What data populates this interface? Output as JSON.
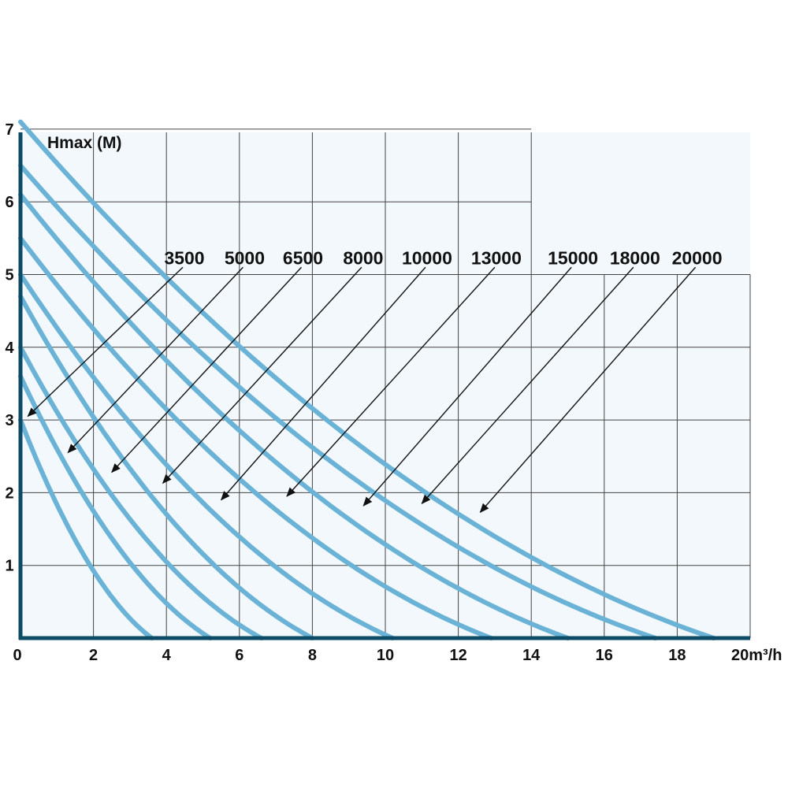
{
  "chart_data": {
    "type": "line",
    "title": "",
    "ylabel": "Hmax (M)",
    "xlabel_prefix": "20",
    "xlabel_unit": "m³/h",
    "xlim": [
      0,
      20
    ],
    "ylim": [
      0,
      7
    ],
    "grid": true,
    "x_ticks": [
      "0",
      "2",
      "4",
      "6",
      "8",
      "10",
      "12",
      "14",
      "16",
      "18"
    ],
    "y_ticks": [
      "1",
      "2",
      "3",
      "4",
      "5",
      "6",
      "7"
    ],
    "colors": {
      "curve": "#6ab3d6",
      "axis": "#0d4a66",
      "plot_bg": "#f2f8fc",
      "grid": "#444444",
      "arrow": "#111111"
    },
    "series": [
      {
        "name": "3500",
        "hmax": 3.0,
        "qmax": 3.6,
        "label_anchor": [
          4.45,
          5.1
        ],
        "arrow_target": [
          0.2,
          3.05
        ]
      },
      {
        "name": "5000",
        "hmax": 3.6,
        "qmax": 5.2,
        "label_anchor": [
          6.1,
          5.1
        ],
        "arrow_target": [
          1.3,
          2.55
        ]
      },
      {
        "name": "6500",
        "hmax": 4.0,
        "qmax": 6.6,
        "label_anchor": [
          7.7,
          5.1
        ],
        "arrow_target": [
          2.5,
          2.28
        ]
      },
      {
        "name": "8000",
        "hmax": 4.7,
        "qmax": 8.0,
        "label_anchor": [
          9.35,
          5.1
        ],
        "arrow_target": [
          3.9,
          2.13
        ]
      },
      {
        "name": "10000",
        "hmax": 5.0,
        "qmax": 10.2,
        "label_anchor": [
          11.1,
          5.1
        ],
        "arrow_target": [
          5.5,
          1.9
        ]
      },
      {
        "name": "13000",
        "hmax": 5.5,
        "qmax": 12.9,
        "label_anchor": [
          13.0,
          5.1
        ],
        "arrow_target": [
          7.3,
          1.95
        ]
      },
      {
        "name": "15000",
        "hmax": 6.1,
        "qmax": 15.0,
        "label_anchor": [
          15.1,
          5.1
        ],
        "arrow_target": [
          9.4,
          1.82
        ]
      },
      {
        "name": "18000",
        "hmax": 6.5,
        "qmax": 17.4,
        "label_anchor": [
          16.8,
          5.1
        ],
        "arrow_target": [
          11.0,
          1.85
        ]
      },
      {
        "name": "20000",
        "hmax": 7.1,
        "qmax": 19.0,
        "label_anchor": [
          18.5,
          5.1
        ],
        "arrow_target": [
          12.6,
          1.73
        ]
      }
    ]
  }
}
